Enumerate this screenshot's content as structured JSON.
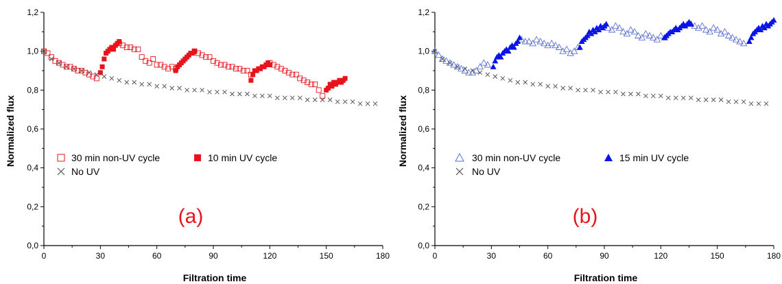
{
  "colors": {
    "uv_red": "#e8141c",
    "uv_blue": "#0a14e6",
    "nonuv_blue": "#5a6fd0",
    "no_uv": "#555555",
    "panel_label_red": "#e8141c"
  },
  "chart_data": [
    {
      "type": "scatter",
      "panel_label": "(a)",
      "xlabel": "Filtration time",
      "ylabel": "Normalized flux",
      "xlim": [
        0,
        180
      ],
      "ylim": [
        0.0,
        1.2
      ],
      "x_ticks": [
        "0",
        "30",
        "60",
        "90",
        "120",
        "150",
        "180"
      ],
      "y_ticks": [
        "0,0",
        "0,2",
        "0,4",
        "0,6",
        "0,8",
        "1,0",
        "1,2"
      ],
      "legend": [
        "30 min non-UV cycle",
        "10 min UV cycle",
        "No UV"
      ],
      "series": [
        {
          "name": "30 min non-UV cycle",
          "marker": "open-square",
          "color": "#e8141c",
          "x": [
            0,
            2,
            4,
            6,
            8,
            10,
            12,
            14,
            16,
            18,
            20,
            22,
            24,
            26,
            28,
            40,
            42,
            44,
            46,
            48,
            50,
            52,
            54,
            56,
            58,
            60,
            62,
            64,
            66,
            68,
            70,
            80,
            82,
            84,
            86,
            88,
            90,
            92,
            94,
            96,
            98,
            100,
            102,
            104,
            106,
            108,
            110,
            120,
            122,
            124,
            126,
            128,
            130,
            132,
            134,
            136,
            138,
            140,
            142,
            144,
            146,
            148
          ],
          "y": [
            1.0,
            0.99,
            0.97,
            0.95,
            0.94,
            0.93,
            0.92,
            0.92,
            0.91,
            0.9,
            0.9,
            0.89,
            0.88,
            0.87,
            0.86,
            1.04,
            1.03,
            1.02,
            1.02,
            1.01,
            1.01,
            0.97,
            0.95,
            0.94,
            0.96,
            0.93,
            0.93,
            0.92,
            0.91,
            0.92,
            0.91,
            1.0,
            0.99,
            0.98,
            0.97,
            0.97,
            0.95,
            0.94,
            0.93,
            0.93,
            0.92,
            0.92,
            0.91,
            0.91,
            0.9,
            0.9,
            0.88,
            0.94,
            0.93,
            0.92,
            0.91,
            0.9,
            0.89,
            0.88,
            0.88,
            0.86,
            0.85,
            0.84,
            0.83,
            0.83,
            0.8,
            0.77
          ]
        },
        {
          "name": "10 min UV cycle",
          "marker": "filled-square",
          "color": "#e8141c",
          "x": [
            30,
            31,
            32,
            33,
            34,
            35,
            36,
            37,
            38,
            39,
            40,
            70,
            71,
            72,
            73,
            74,
            75,
            76,
            77,
            78,
            79,
            80,
            110,
            111,
            112,
            113,
            114,
            115,
            116,
            117,
            118,
            119,
            120,
            150,
            151,
            152,
            153,
            154,
            155,
            156,
            157,
            158,
            159,
            160
          ],
          "y": [
            0.89,
            0.92,
            0.96,
            0.99,
            1.0,
            1.01,
            1.02,
            1.01,
            1.03,
            1.04,
            1.05,
            0.9,
            0.92,
            0.93,
            0.94,
            0.95,
            0.96,
            0.97,
            0.98,
            0.99,
            0.99,
            1.0,
            0.85,
            0.88,
            0.9,
            0.9,
            0.91,
            0.91,
            0.92,
            0.92,
            0.93,
            0.94,
            0.93,
            0.8,
            0.81,
            0.83,
            0.82,
            0.84,
            0.83,
            0.84,
            0.85,
            0.84,
            0.85,
            0.86
          ]
        },
        {
          "name": "No UV",
          "marker": "cross",
          "color": "#555555",
          "x": [
            0,
            4,
            8,
            12,
            16,
            20,
            24,
            28,
            32,
            36,
            40,
            44,
            48,
            52,
            56,
            60,
            64,
            68,
            72,
            76,
            80,
            84,
            88,
            92,
            96,
            100,
            104,
            108,
            112,
            116,
            120,
            124,
            128,
            132,
            136,
            140,
            144,
            148,
            152,
            156,
            160,
            164,
            168,
            172,
            176
          ],
          "y": [
            1.0,
            0.96,
            0.94,
            0.92,
            0.91,
            0.9,
            0.89,
            0.88,
            0.87,
            0.86,
            0.85,
            0.84,
            0.84,
            0.83,
            0.83,
            0.82,
            0.82,
            0.81,
            0.81,
            0.8,
            0.8,
            0.8,
            0.79,
            0.79,
            0.79,
            0.78,
            0.78,
            0.78,
            0.77,
            0.77,
            0.77,
            0.76,
            0.76,
            0.76,
            0.76,
            0.75,
            0.75,
            0.75,
            0.75,
            0.74,
            0.74,
            0.74,
            0.73,
            0.73,
            0.73
          ]
        }
      ]
    },
    {
      "type": "scatter",
      "panel_label": "(b)",
      "xlabel": "Filtration time",
      "ylabel": "Normalized flux",
      "xlim": [
        0,
        180
      ],
      "ylim": [
        0.0,
        1.2
      ],
      "x_ticks": [
        "0",
        "30",
        "60",
        "90",
        "120",
        "150",
        "180"
      ],
      "y_ticks": [
        "0,0",
        "0,2",
        "0,4",
        "0,6",
        "0,8",
        "1,0",
        "1,2"
      ],
      "legend": [
        "30 min non-UV cycle",
        "15 min UV cycle",
        "No UV"
      ],
      "series": [
        {
          "name": "30 min non-UV cycle",
          "marker": "open-triangle",
          "color": "#5a6fd0",
          "x": [
            0,
            2,
            4,
            6,
            8,
            10,
            12,
            14,
            16,
            18,
            20,
            22,
            24,
            26,
            28,
            46,
            48,
            50,
            52,
            54,
            56,
            58,
            60,
            62,
            64,
            66,
            68,
            70,
            72,
            74,
            76,
            92,
            94,
            96,
            98,
            100,
            102,
            104,
            106,
            108,
            110,
            112,
            114,
            116,
            118,
            120,
            122,
            136,
            138,
            140,
            142,
            144,
            146,
            148,
            150,
            152,
            154,
            156,
            158,
            160,
            162,
            164
          ],
          "y": [
            1.0,
            0.98,
            0.96,
            0.95,
            0.94,
            0.93,
            0.92,
            0.91,
            0.9,
            0.89,
            0.89,
            0.9,
            0.92,
            0.94,
            0.93,
            1.06,
            1.05,
            1.05,
            1.04,
            1.06,
            1.05,
            1.04,
            1.03,
            1.04,
            1.03,
            1.02,
            1.0,
            1.01,
            0.99,
            1.0,
            1.02,
            1.12,
            1.11,
            1.13,
            1.12,
            1.1,
            1.09,
            1.11,
            1.1,
            1.08,
            1.07,
            1.09,
            1.08,
            1.07,
            1.06,
            1.08,
            1.07,
            1.14,
            1.13,
            1.12,
            1.13,
            1.11,
            1.1,
            1.12,
            1.11,
            1.09,
            1.1,
            1.08,
            1.07,
            1.06,
            1.05,
            1.04
          ]
        },
        {
          "name": "15 min UV cycle",
          "marker": "filled-triangle",
          "color": "#0a14e6",
          "x": [
            31,
            32,
            33,
            34,
            35,
            36,
            37,
            38,
            39,
            40,
            41,
            42,
            43,
            44,
            45,
            77,
            78,
            79,
            80,
            81,
            82,
            83,
            84,
            85,
            86,
            87,
            88,
            89,
            90,
            91,
            122,
            123,
            124,
            125,
            126,
            127,
            128,
            129,
            130,
            131,
            132,
            133,
            134,
            135,
            136,
            167,
            168,
            169,
            170,
            171,
            172,
            173,
            174,
            175,
            176,
            177,
            178,
            179,
            180
          ],
          "y": [
            0.92,
            0.95,
            0.97,
            0.98,
            0.97,
            0.99,
            1.0,
            1.01,
            1.0,
            1.02,
            1.03,
            1.02,
            1.04,
            1.05,
            1.07,
            1.02,
            1.05,
            1.06,
            1.07,
            1.08,
            1.1,
            1.09,
            1.11,
            1.1,
            1.12,
            1.11,
            1.13,
            1.12,
            1.13,
            1.14,
            1.07,
            1.08,
            1.09,
            1.1,
            1.1,
            1.11,
            1.12,
            1.11,
            1.12,
            1.13,
            1.14,
            1.13,
            1.14,
            1.15,
            1.14,
            1.05,
            1.07,
            1.09,
            1.1,
            1.11,
            1.12,
            1.11,
            1.13,
            1.12,
            1.14,
            1.13,
            1.14,
            1.15,
            1.16
          ]
        },
        {
          "name": "No UV",
          "marker": "cross",
          "color": "#555555",
          "x": [
            0,
            4,
            8,
            12,
            16,
            20,
            24,
            28,
            32,
            36,
            40,
            44,
            48,
            52,
            56,
            60,
            64,
            68,
            72,
            76,
            80,
            84,
            88,
            92,
            96,
            100,
            104,
            108,
            112,
            116,
            120,
            124,
            128,
            132,
            136,
            140,
            144,
            148,
            152,
            156,
            160,
            164,
            168,
            172,
            176
          ],
          "y": [
            1.0,
            0.96,
            0.94,
            0.92,
            0.91,
            0.9,
            0.89,
            0.88,
            0.87,
            0.86,
            0.85,
            0.84,
            0.84,
            0.83,
            0.83,
            0.82,
            0.82,
            0.81,
            0.81,
            0.8,
            0.8,
            0.8,
            0.79,
            0.79,
            0.79,
            0.78,
            0.78,
            0.78,
            0.77,
            0.77,
            0.77,
            0.76,
            0.76,
            0.76,
            0.76,
            0.75,
            0.75,
            0.75,
            0.75,
            0.74,
            0.74,
            0.74,
            0.73,
            0.73,
            0.73
          ]
        }
      ]
    }
  ]
}
